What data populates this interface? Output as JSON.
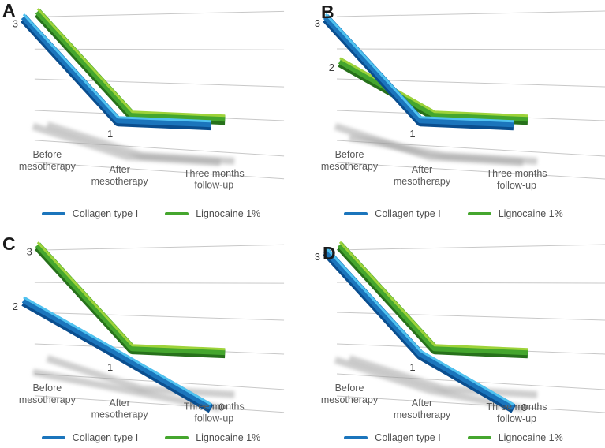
{
  "chart_data": {
    "type": "line",
    "style": "3d-ribbon",
    "grid": true,
    "legend_position": "bottom",
    "value_range": [
      0,
      3
    ],
    "categories": [
      "Before mesotherapy",
      "After mesotherapy",
      "Three months follow-up"
    ],
    "categories_lines": [
      [
        "Before",
        "mesotherapy"
      ],
      [
        "After",
        "mesotherapy"
      ],
      [
        "Three months",
        "follow-up"
      ]
    ],
    "series_meta": [
      {
        "key": "collagen",
        "name": "Collagen type I",
        "color": "#1B75BC"
      },
      {
        "key": "lignocaine",
        "name": "Lignocaine 1%",
        "color": "#45A62E"
      }
    ],
    "panels": [
      {
        "label": "A",
        "series": [
          {
            "name": "Collagen type I",
            "values": [
              3,
              1,
              1
            ]
          },
          {
            "name": "Lignocaine 1%",
            "values": [
              3,
              1,
              1
            ]
          }
        ]
      },
      {
        "label": "B",
        "series": [
          {
            "name": "Collagen type I",
            "values": [
              3,
              1,
              1
            ]
          },
          {
            "name": "Lignocaine 1%",
            "values": [
              2,
              1,
              1
            ]
          }
        ]
      },
      {
        "label": "C",
        "series": [
          {
            "name": "Collagen type I",
            "values": [
              2,
              1,
              0
            ]
          },
          {
            "name": "Lignocaine 1%",
            "values": [
              3,
              1,
              1
            ]
          }
        ]
      },
      {
        "label": "D",
        "series": [
          {
            "name": "Collagen type I",
            "values": [
              3,
              1,
              0
            ]
          },
          {
            "name": "Lignocaine 1%",
            "values": [
              3,
              1,
              1
            ]
          }
        ]
      }
    ]
  },
  "colors": {
    "collagen_main": "#1B75BC",
    "collagen_light": "#4FC2F0",
    "collagen_dark": "#0A4E8F",
    "lignocaine_main": "#45A62E",
    "lignocaine_light": "#9ED33A",
    "lignocaine_dark": "#27711B",
    "gridline": "#c8c8c8",
    "shadow": "#9e9e9e",
    "axis_text": "#595959",
    "value_text": "#3d3d3d"
  }
}
